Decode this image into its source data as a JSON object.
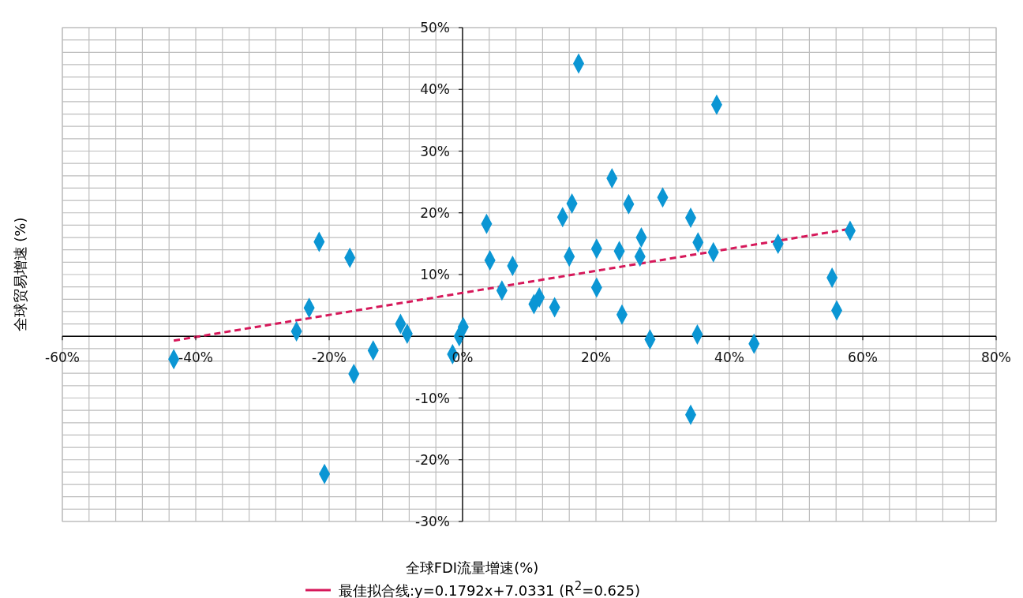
{
  "chart_data": {
    "type": "scatter",
    "xlabel": "全球FDI流量增速(%)",
    "ylabel": "全球贸易增速 (%)",
    "xlim": [
      -60,
      80
    ],
    "ylim": [
      -30,
      50
    ],
    "xticks": [
      {
        "value": -60,
        "label": "-60%"
      },
      {
        "value": -40,
        "label": "-40%"
      },
      {
        "value": -20,
        "label": "-20%"
      },
      {
        "value": 0,
        "label": "0%"
      },
      {
        "value": 20,
        "label": "20%"
      },
      {
        "value": 40,
        "label": "40%"
      },
      {
        "value": 60,
        "label": "60%"
      },
      {
        "value": 80,
        "label": "80%"
      }
    ],
    "yticks": [
      {
        "value": -30,
        "label": "-30%"
      },
      {
        "value": -20,
        "label": "-20%"
      },
      {
        "value": -10,
        "label": "-10%"
      },
      {
        "value": 0,
        "label": null
      },
      {
        "value": 10,
        "label": "10%"
      },
      {
        "value": 20,
        "label": "20%"
      },
      {
        "value": 30,
        "label": "30%"
      },
      {
        "value": 40,
        "label": "40%"
      },
      {
        "value": 50,
        "label": "50%"
      }
    ],
    "grid": true,
    "legend": "bottom",
    "series": [
      {
        "color": "#0b96d4",
        "marker": "diamond",
        "x": [
          -43.3,
          -24.9,
          -23.0,
          -21.5,
          -20.7,
          -16.9,
          -16.3,
          -13.4,
          -9.3,
          -8.3,
          -1.5,
          -0.5,
          0.1,
          3.6,
          4.1,
          5.9,
          7.5,
          10.7,
          11.5,
          13.8,
          15.0,
          16.0,
          16.4,
          17.4,
          20.1,
          20.1,
          22.4,
          23.5,
          23.9,
          24.9,
          26.6,
          26.8,
          28.1,
          30.0,
          34.2,
          34.2,
          35.3,
          35.2,
          37.6,
          38.1,
          43.7,
          47.3,
          55.4,
          56.1,
          58.1
        ],
        "values": [
          -3.7,
          0.8,
          4.6,
          15.3,
          -22.3,
          12.7,
          -6.1,
          -2.3,
          2.0,
          0.4,
          -2.9,
          0,
          1.5,
          18.2,
          12.3,
          7.4,
          11.4,
          5.2,
          6.3,
          4.7,
          19.3,
          12.9,
          21.5,
          44.2,
          14.2,
          7.9,
          25.6,
          13.8,
          3.5,
          21.4,
          12.9,
          16.0,
          -0.5,
          22.5,
          19.2,
          -12.7,
          15.2,
          0.3,
          13.6,
          37.5,
          -1.2,
          15.0,
          9.5,
          4.2,
          17.1
        ]
      },
      {
        "type": "line",
        "name": "最佳拟合线:y=0.1792x+7.0331 (R$^{2}$=0.625)",
        "color": "#d6185a",
        "line_style": "dashed",
        "marker": "none",
        "x": [
          -43.3,
          58.1
        ],
        "values": [
          -0.7,
          17.4
        ]
      }
    ]
  }
}
